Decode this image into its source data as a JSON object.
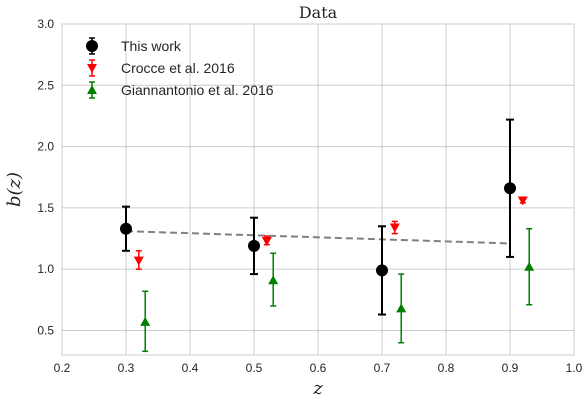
{
  "chart_data": {
    "type": "scatter",
    "title": "Data",
    "xlabel": "z",
    "ylabel": "b(z)",
    "xlim": [
      0.2,
      1.0
    ],
    "ylim": [
      0.3,
      3.0
    ],
    "xticks": [
      "0.2",
      "0.3",
      "0.4",
      "0.5",
      "0.6",
      "0.7",
      "0.8",
      "0.9",
      "1.0"
    ],
    "yticks": [
      "0.5",
      "1.0",
      "1.5",
      "2.0",
      "2.5",
      "3.0"
    ],
    "grid": true,
    "legend_position": "top-left",
    "series": [
      {
        "name": "This work",
        "marker": "circle",
        "color": "#000000",
        "points": [
          {
            "x": 0.3,
            "y": 1.33,
            "lo": 1.15,
            "hi": 1.51
          },
          {
            "x": 0.5,
            "y": 1.19,
            "lo": 0.96,
            "hi": 1.42
          },
          {
            "x": 0.7,
            "y": 0.99,
            "lo": 0.63,
            "hi": 1.35
          },
          {
            "x": 0.9,
            "y": 1.66,
            "lo": 1.1,
            "hi": 2.22
          }
        ]
      },
      {
        "name": "Crocce et al. 2016",
        "marker": "triangle-down",
        "color": "#ff0000",
        "points": [
          {
            "x": 0.32,
            "y": 1.07,
            "lo": 1.0,
            "hi": 1.15
          },
          {
            "x": 0.52,
            "y": 1.23,
            "lo": 1.2,
            "hi": 1.27
          },
          {
            "x": 0.72,
            "y": 1.34,
            "lo": 1.29,
            "hi": 1.39
          },
          {
            "x": 0.92,
            "y": 1.56,
            "lo": 1.54,
            "hi": 1.58
          }
        ]
      },
      {
        "name": "Giannantonio et al. 2016",
        "marker": "triangle-up",
        "color": "#008000",
        "points": [
          {
            "x": 0.33,
            "y": 0.57,
            "lo": 0.33,
            "hi": 0.82
          },
          {
            "x": 0.53,
            "y": 0.91,
            "lo": 0.7,
            "hi": 1.13
          },
          {
            "x": 0.73,
            "y": 0.68,
            "lo": 0.4,
            "hi": 0.96
          },
          {
            "x": 0.93,
            "y": 1.02,
            "lo": 0.71,
            "hi": 1.33
          }
        ]
      }
    ],
    "fit_line": {
      "style": "dashed",
      "color": "#808080",
      "x": [
        0.3,
        0.9
      ],
      "y": [
        1.31,
        1.21
      ]
    }
  }
}
